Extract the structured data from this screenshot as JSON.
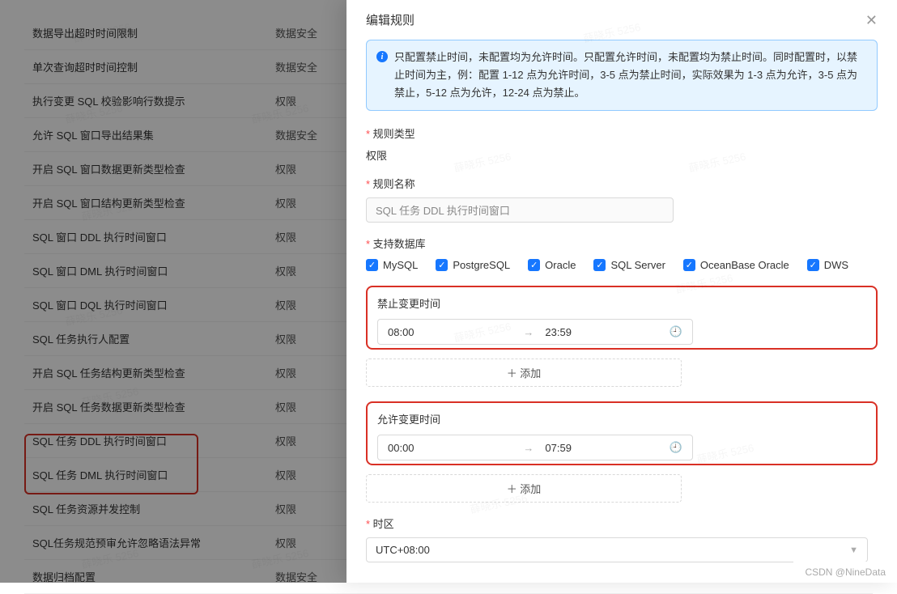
{
  "drawer": {
    "title": "编辑规则",
    "alert": "只配置禁止时间，未配置均为允许时间。只配置允许时间，未配置均为禁止时间。同时配置时，以禁止时间为主，例：配置 1-12 点为允许时间，3-5 点为禁止时间，实际效果为 1-3 点为允许，3-5 点为禁止，5-12 点为允许，12-24 点为禁止。",
    "labels": {
      "ruleType": "规则类型",
      "ruleTypeValue": "权限",
      "ruleName": "规则名称",
      "ruleNameValue": "SQL 任务 DDL 执行时间窗口",
      "supportDb": "支持数据库",
      "forbidTime": "禁止变更时间",
      "allowTime": "允许变更时间",
      "timezone": "时区",
      "addBtn": "＋ 添加"
    },
    "databases": [
      "MySQL",
      "PostgreSQL",
      "Oracle",
      "SQL Server",
      "OceanBase Oracle",
      "DWS"
    ],
    "forbid": {
      "start": "08:00",
      "end": "23:59"
    },
    "allow": {
      "start": "00:00",
      "end": "07:59"
    },
    "timezoneValue": "UTC+08:00"
  },
  "bgList": {
    "cat_security": "数据安全",
    "cat_perm": "权限",
    "rows": [
      {
        "name": "数据导出超时时间限制",
        "cat": "数据安全"
      },
      {
        "name": "单次查询超时时间控制",
        "cat": "数据安全"
      },
      {
        "name": "执行变更 SQL 校验影响行数提示",
        "cat": "权限"
      },
      {
        "name": "允许 SQL 窗口导出结果集",
        "cat": "数据安全"
      },
      {
        "name": "开启 SQL 窗口数据更新类型检查",
        "cat": "权限"
      },
      {
        "name": "开启 SQL 窗口结构更新类型检查",
        "cat": "权限"
      },
      {
        "name": "SQL 窗口 DDL 执行时间窗口",
        "cat": "权限"
      },
      {
        "name": "SQL 窗口 DML 执行时间窗口",
        "cat": "权限"
      },
      {
        "name": "SQL 窗口 DQL 执行时间窗口",
        "cat": "权限"
      },
      {
        "name": "SQL 任务执行人配置",
        "cat": "权限"
      },
      {
        "name": "开启 SQL 任务结构更新类型检查",
        "cat": "权限"
      },
      {
        "name": "开启 SQL 任务数据更新类型检查",
        "cat": "权限"
      },
      {
        "name": "SQL 任务 DDL 执行时间窗口",
        "cat": "权限"
      },
      {
        "name": "SQL 任务 DML 执行时间窗口",
        "cat": "权限"
      },
      {
        "name": "SQL 任务资源并发控制",
        "cat": "权限"
      },
      {
        "name": "SQL任务规范预审允许忽略语法异常",
        "cat": "权限"
      },
      {
        "name": "数据归档配置",
        "cat": "数据安全"
      }
    ]
  },
  "footer": "CSDN @NineData",
  "watermark": "薛晓乐 5256"
}
